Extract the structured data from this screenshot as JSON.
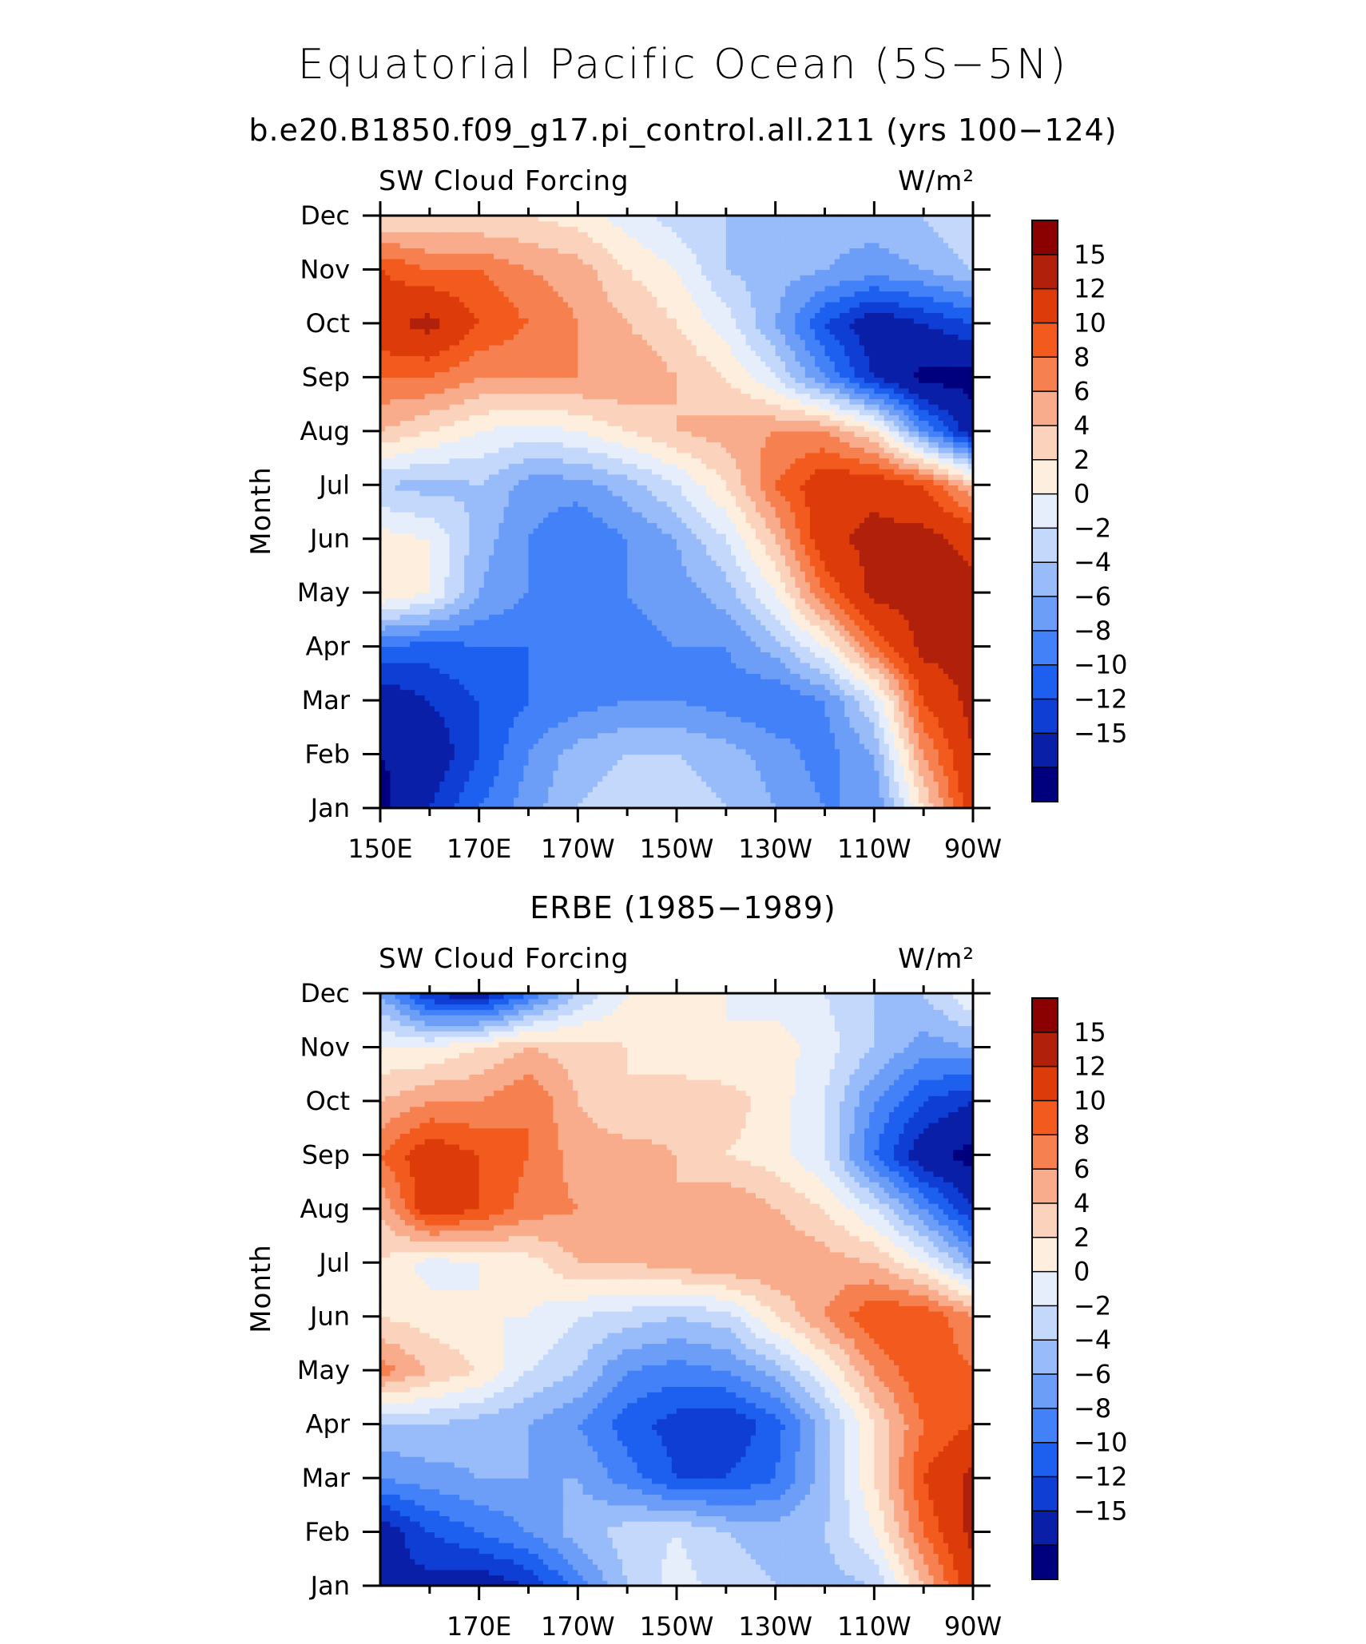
{
  "title": "Equatorial Pacific Ocean (5S−5N)",
  "colors": [
    "#00007f",
    "#0a1fa8",
    "#0e3ed3",
    "#1d60f0",
    "#4281f7",
    "#6c9ef8",
    "#98bbf9",
    "#c3d8fb",
    "#e6eefc",
    "#fdeedd",
    "#fbd3bc",
    "#f9ac8c",
    "#f6804f",
    "#f25a1e",
    "#dd3c0a",
    "#b0200a",
    "#8b0000"
  ],
  "chart_data": [
    {
      "type": "heatmap",
      "title": "b.e20.B1850.f09_g17.pi_control.all.211 (yrs 100−124)",
      "left_label": "SW Cloud Forcing",
      "right_label": "W/m²",
      "ylabel": "Month",
      "x_ticks": [
        "150E",
        "170E",
        "170W",
        "150W",
        "130W",
        "110W",
        "90W"
      ],
      "y_ticks": [
        "Jan",
        "Feb",
        "Mar",
        "Apr",
        "May",
        "Jun",
        "Jul",
        "Aug",
        "Sep",
        "Oct",
        "Nov",
        "Dec"
      ],
      "xlim": [
        150,
        270
      ],
      "colorbar_labels": [
        "15",
        "12",
        "10",
        "8",
        "6",
        "4",
        "2",
        "0",
        "−2",
        "−4",
        "−6",
        "−8",
        "−10",
        "−12",
        "−15"
      ],
      "x": [
        150,
        160,
        170,
        180,
        190,
        200,
        210,
        220,
        230,
        240,
        250,
        260,
        270
      ],
      "z": [
        [
          -16,
          -12,
          -8,
          -5,
          -2,
          -1,
          -1,
          -2,
          -4,
          -6,
          -6,
          4,
          14
        ],
        [
          -15,
          -14,
          -10,
          -6,
          -3,
          -2,
          -2,
          -3,
          -5,
          -7,
          -4,
          8,
          15
        ],
        [
          -14,
          -12,
          -10,
          -8,
          -7,
          -6,
          -6,
          -7,
          -8,
          -6,
          0,
          12,
          16
        ],
        [
          -8,
          -9,
          -8,
          -8,
          -7,
          -7,
          -6,
          -6,
          -3,
          2,
          10,
          16,
          16
        ],
        [
          4,
          2,
          -4,
          -6,
          -6,
          -6,
          -5,
          -3,
          2,
          10,
          16,
          16,
          16
        ],
        [
          3,
          2,
          -3,
          -6,
          -8,
          -6,
          -4,
          0,
          6,
          14,
          16,
          16,
          14
        ],
        [
          -2,
          -3,
          -2,
          -5,
          -5,
          -3,
          0,
          4,
          10,
          14,
          14,
          12,
          6
        ],
        [
          6,
          4,
          2,
          1,
          2,
          4,
          6,
          7,
          8,
          8,
          4,
          -6,
          -14
        ],
        [
          10,
          10,
          8,
          8,
          8,
          8,
          6,
          4,
          0,
          -6,
          -12,
          -16,
          -16
        ],
        [
          14,
          16,
          12,
          10,
          8,
          6,
          4,
          1,
          -4,
          -10,
          -14,
          -12,
          -10
        ],
        [
          12,
          10,
          10,
          8,
          7,
          4,
          2,
          -2,
          -3,
          -4,
          -5,
          -4,
          -2
        ],
        [
          4,
          4,
          4,
          4,
          3,
          1,
          -1,
          -2,
          -3,
          -3,
          -3,
          -2,
          0
        ]
      ]
    },
    {
      "type": "heatmap",
      "title": "ERBE (1985−1989)",
      "left_label": "SW Cloud Forcing",
      "right_label": "W/m²",
      "ylabel": "Month",
      "x_ticks": [
        "170E",
        "170W",
        "150W",
        "130W",
        "110W",
        "90W"
      ],
      "y_ticks": [
        "Jan",
        "Feb",
        "Mar",
        "Apr",
        "May",
        "Jun",
        "Jul",
        "Aug",
        "Sep",
        "Oct",
        "Nov",
        "Dec"
      ],
      "xlim": [
        150,
        270
      ],
      "colorbar_labels": [
        "15",
        "12",
        "10",
        "8",
        "6",
        "4",
        "2",
        "0",
        "−2",
        "−4",
        "−6",
        "−8",
        "−10",
        "−12",
        "−15"
      ],
      "x": [
        150,
        160,
        170,
        180,
        190,
        200,
        210,
        220,
        230,
        240,
        250,
        260,
        270
      ],
      "z": [
        [
          -12,
          -13,
          -14,
          -12,
          -7,
          -2,
          1,
          -1,
          -2,
          -3,
          -2,
          6,
          14
        ],
        [
          -14,
          -10,
          -8,
          -6,
          -3,
          -1,
          0,
          -2,
          -3,
          -2,
          2,
          10,
          16
        ],
        [
          -6,
          -5,
          -4,
          -4,
          -4,
          -7,
          -10,
          -10,
          -8,
          -3,
          4,
          12,
          16
        ],
        [
          -2,
          -2,
          -3,
          -4,
          -6,
          -9,
          -11,
          -12,
          -9,
          -3,
          4,
          10,
          12
        ],
        [
          9,
          6,
          4,
          0,
          -2,
          -6,
          -7,
          -6,
          -3,
          2,
          8,
          12,
          10
        ],
        [
          4,
          3,
          2,
          2,
          0,
          -1,
          -2,
          -1,
          4,
          8,
          12,
          12,
          8
        ],
        [
          4,
          1,
          2,
          3,
          6,
          6,
          7,
          8,
          8,
          7,
          6,
          2,
          -4
        ],
        [
          6,
          14,
          12,
          9,
          8,
          7,
          6,
          8,
          6,
          4,
          0,
          -6,
          -12
        ],
        [
          10,
          14,
          12,
          10,
          7,
          7,
          6,
          4,
          3,
          0,
          -8,
          -14,
          -16
        ],
        [
          6,
          8,
          8,
          10,
          6,
          4,
          5,
          5,
          3,
          0,
          -6,
          -10,
          -12
        ],
        [
          2,
          2,
          4,
          6,
          5,
          4,
          3,
          2,
          3,
          1,
          -2,
          -5,
          -4
        ],
        [
          -4,
          -12,
          -14,
          -8,
          -2,
          2,
          3,
          2,
          1,
          0,
          -2,
          -2,
          2
        ]
      ]
    }
  ]
}
